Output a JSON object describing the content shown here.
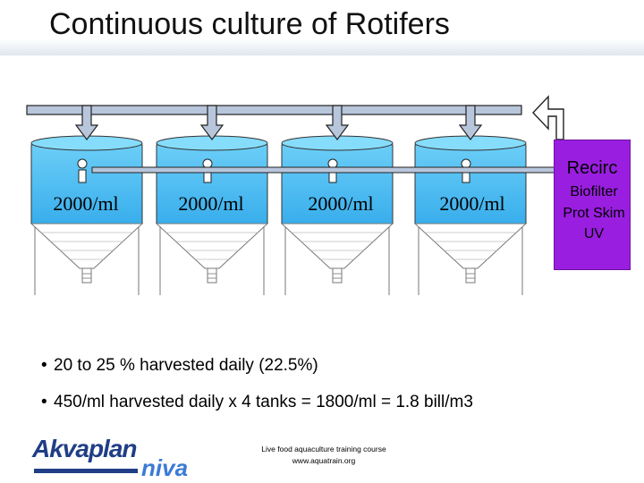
{
  "slide": {
    "title": "Continuous culture of Rotifers"
  },
  "tanks": [
    {
      "concentration": "2000/ml"
    },
    {
      "concentration": "2000/ml"
    },
    {
      "concentration": "2000/ml"
    },
    {
      "concentration": "2000/ml"
    }
  ],
  "recirc": {
    "title": "Recirc",
    "items": [
      "Biofilter",
      "Prot Skim",
      "UV"
    ],
    "color": "#9a1ee0"
  },
  "bullets": [
    "20 to 25 % harvested daily  (22.5%)",
    "450/ml harvested daily x 4 tanks = 1800/ml = 1.8 bill/m3"
  ],
  "logo": {
    "part1": "Akvaplan",
    "part2": "niva"
  },
  "footer": {
    "line1": "Live food aquaculture training course",
    "line2": "www.aquatrain.org"
  },
  "colors": {
    "tank_fill": "#3fb3ef",
    "pipe_fill": "#b8c6dc"
  }
}
